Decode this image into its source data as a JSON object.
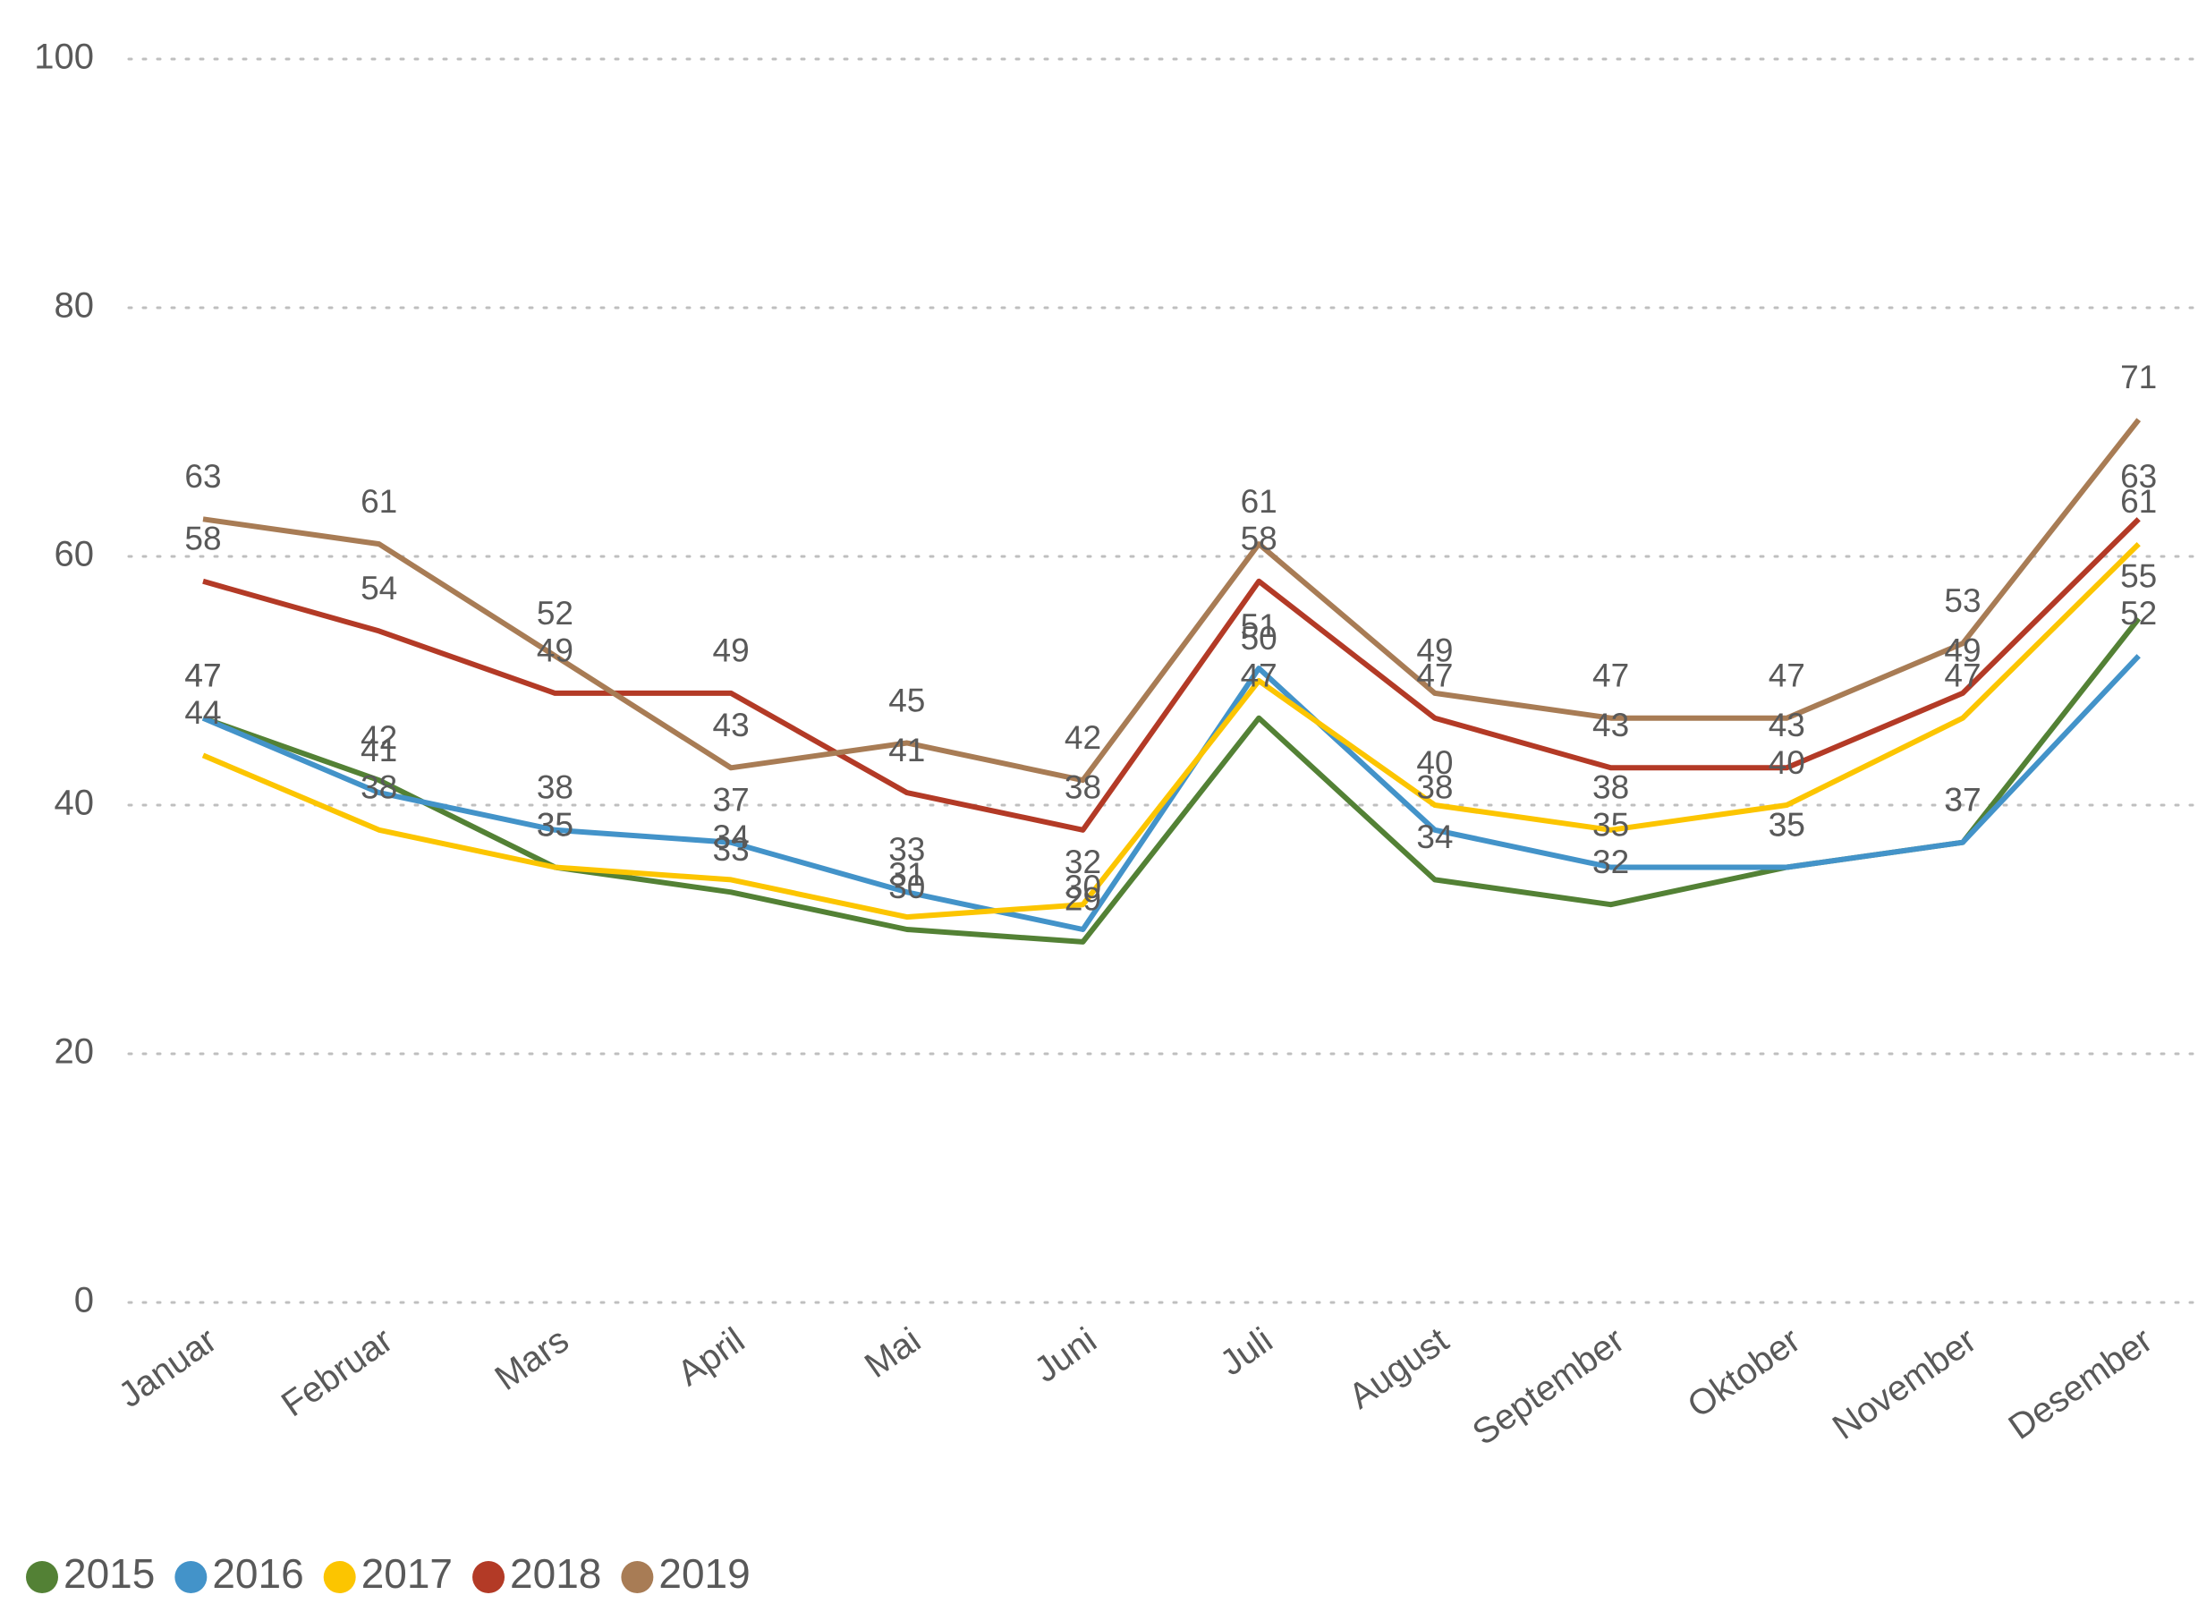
{
  "chart_data": {
    "type": "line",
    "categories": [
      "Januar",
      "Februar",
      "Mars",
      "April",
      "Mai",
      "Juni",
      "Juli",
      "August",
      "September",
      "Oktober",
      "November",
      "Desember"
    ],
    "series": [
      {
        "name": "2015",
        "color": "#538135",
        "values": [
          47,
          42,
          35,
          33,
          30,
          29,
          47,
          34,
          32,
          35,
          37,
          55
        ]
      },
      {
        "name": "2016",
        "color": "#4393c9",
        "values": [
          47,
          41,
          38,
          37,
          33,
          30,
          51,
          38,
          35,
          35,
          37,
          52
        ]
      },
      {
        "name": "2017",
        "color": "#fcc500",
        "values": [
          44,
          38,
          35,
          34,
          31,
          32,
          50,
          40,
          38,
          40,
          47,
          61
        ]
      },
      {
        "name": "2018",
        "color": "#b33a26",
        "values": [
          58,
          54,
          49,
          49,
          41,
          38,
          58,
          47,
          43,
          43,
          49,
          63
        ]
      },
      {
        "name": "2019",
        "color": "#a87c55",
        "values": [
          63,
          61,
          52,
          43,
          45,
          42,
          61,
          49,
          47,
          47,
          53,
          71
        ]
      }
    ],
    "ylim": [
      0,
      100
    ],
    "yticks": [
      0,
      20,
      40,
      60,
      80,
      100
    ],
    "grid": true,
    "legend": "bottom-left"
  }
}
